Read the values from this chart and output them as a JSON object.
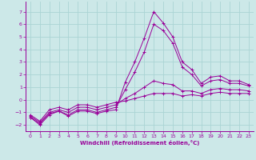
{
  "xlabel": "Windchill (Refroidissement éolien,°C)",
  "background_color": "#cce8e8",
  "grid_color": "#aad4d4",
  "line_color": "#990099",
  "xlim": [
    -0.5,
    23.5
  ],
  "ylim": [
    -2.5,
    7.8
  ],
  "xticks": [
    0,
    1,
    2,
    3,
    4,
    5,
    6,
    7,
    8,
    9,
    10,
    11,
    12,
    13,
    14,
    15,
    16,
    17,
    18,
    19,
    20,
    21,
    22,
    23
  ],
  "yticks": [
    -2,
    -1,
    0,
    1,
    2,
    3,
    4,
    5,
    6,
    7
  ],
  "series": [
    {
      "x": [
        0,
        1,
        2,
        3,
        4,
        5,
        6,
        7,
        8,
        9,
        10,
        11,
        12,
        13,
        14,
        15,
        16,
        17,
        18,
        19,
        20,
        21,
        22,
        23
      ],
      "y": [
        -1.4,
        -2.0,
        -1.2,
        -0.9,
        -1.3,
        -0.9,
        -0.9,
        -1.1,
        -0.9,
        -0.8,
        1.4,
        3.0,
        4.9,
        7.0,
        6.1,
        5.0,
        3.0,
        2.4,
        1.3,
        1.8,
        1.9,
        1.5,
        1.5,
        1.2
      ]
    },
    {
      "x": [
        0,
        1,
        2,
        3,
        4,
        5,
        6,
        7,
        8,
        9,
        10,
        11,
        12,
        13,
        14,
        15,
        16,
        17,
        18,
        19,
        20,
        21,
        22,
        23
      ],
      "y": [
        -1.4,
        -1.9,
        -1.1,
        -0.9,
        -1.2,
        -0.8,
        -0.8,
        -1.0,
        -0.8,
        -0.6,
        0.8,
        2.2,
        3.8,
        6.0,
        5.5,
        4.5,
        2.6,
        2.0,
        1.1,
        1.5,
        1.6,
        1.3,
        1.3,
        1.1
      ]
    },
    {
      "x": [
        0,
        1,
        2,
        3,
        4,
        5,
        6,
        7,
        8,
        9,
        10,
        11,
        12,
        13,
        14,
        15,
        16,
        17,
        18,
        19,
        20,
        21,
        22,
        23
      ],
      "y": [
        -1.3,
        -1.8,
        -1.0,
        -0.8,
        -1.0,
        -0.6,
        -0.6,
        -0.8,
        -0.6,
        -0.4,
        0.1,
        0.5,
        1.0,
        1.5,
        1.3,
        1.2,
        0.7,
        0.7,
        0.5,
        0.8,
        0.9,
        0.8,
        0.8,
        0.7
      ]
    },
    {
      "x": [
        0,
        1,
        2,
        3,
        4,
        5,
        6,
        7,
        8,
        9,
        10,
        11,
        12,
        13,
        14,
        15,
        16,
        17,
        18,
        19,
        20,
        21,
        22,
        23
      ],
      "y": [
        -1.2,
        -1.7,
        -0.8,
        -0.6,
        -0.8,
        -0.4,
        -0.4,
        -0.6,
        -0.4,
        -0.2,
        -0.1,
        0.1,
        0.3,
        0.5,
        0.5,
        0.5,
        0.3,
        0.4,
        0.3,
        0.5,
        0.6,
        0.5,
        0.5,
        0.5
      ]
    }
  ]
}
